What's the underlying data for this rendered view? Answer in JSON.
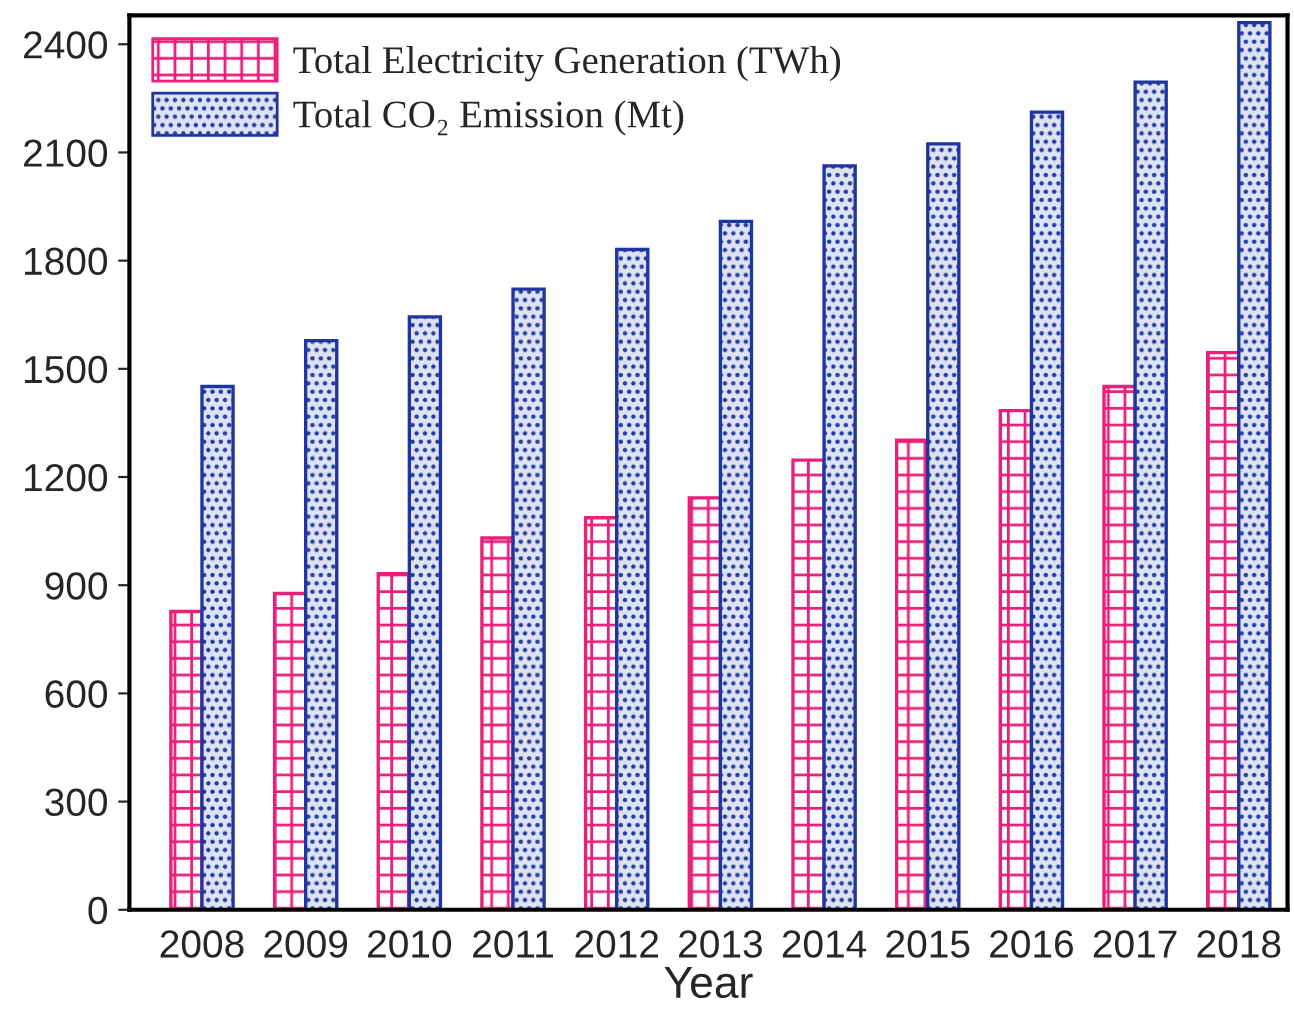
{
  "chart_data": {
    "type": "bar",
    "xlabel": "Year",
    "categories": [
      "2008",
      "2009",
      "2010",
      "2011",
      "2012",
      "2013",
      "2014",
      "2015",
      "2016",
      "2017",
      "2018"
    ],
    "series": [
      {
        "name": "Total Electricity Generation (TWh)",
        "color": "#e8207a",
        "values": [
          827,
          877,
          932,
          1031,
          1087,
          1142,
          1247,
          1302,
          1384,
          1451,
          1545
        ]
      },
      {
        "name": "Total CO₂ Emission (Mt)",
        "color": "#1f35a0",
        "values": [
          1451,
          1578,
          1644,
          1721,
          1831,
          1909,
          2063,
          2124,
          2212,
          2295,
          2460
        ]
      }
    ],
    "ylim": [
      0,
      2480
    ],
    "yticks": [
      0,
      300,
      600,
      900,
      1200,
      1500,
      1800,
      2100,
      2400
    ],
    "grid": false,
    "legend": "top left"
  }
}
